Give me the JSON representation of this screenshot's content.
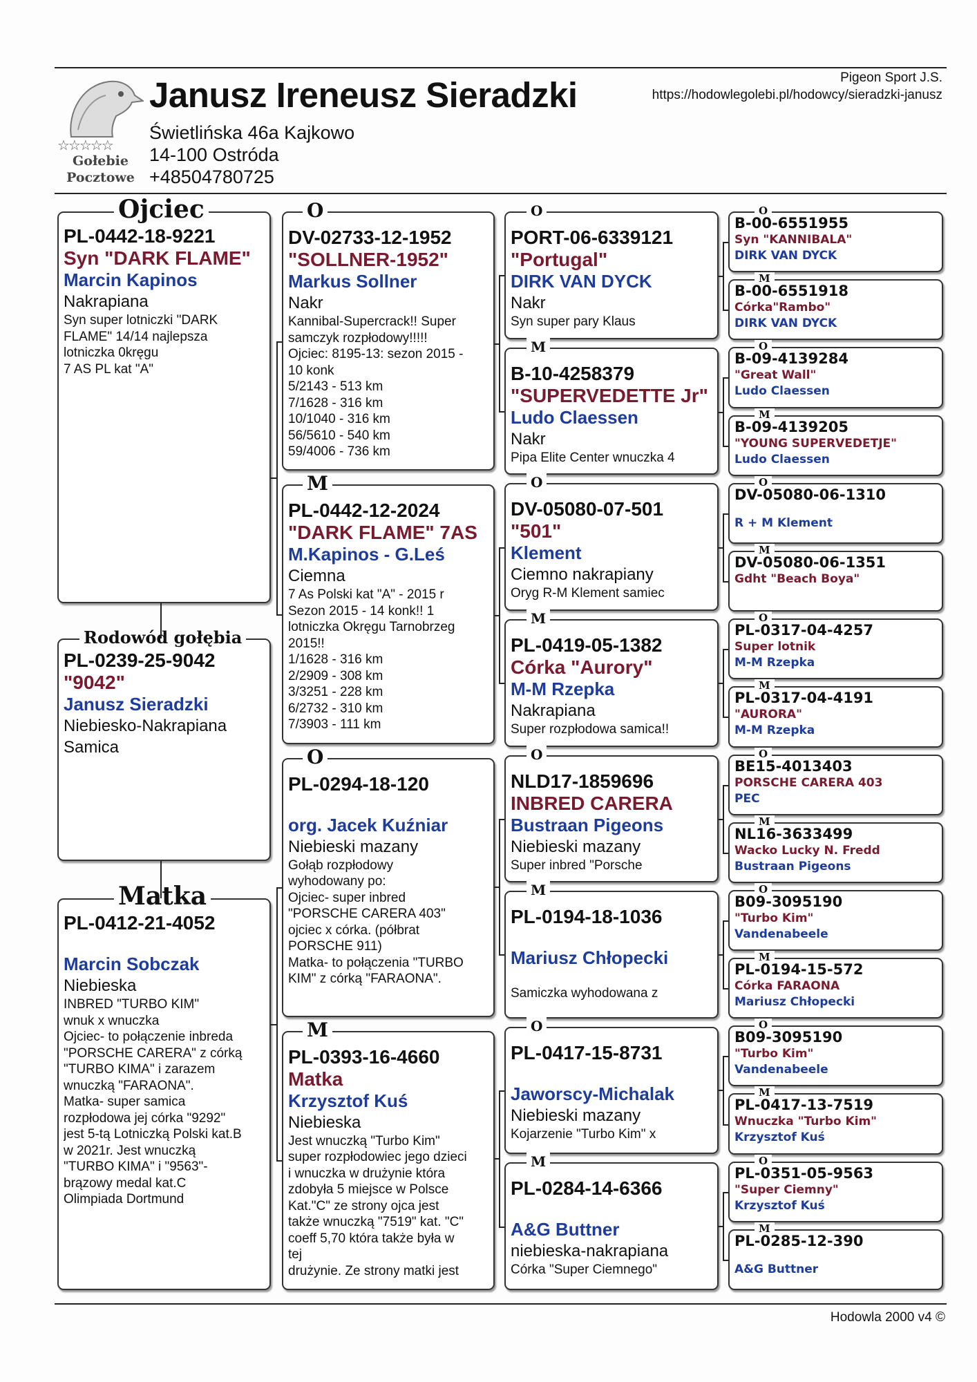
{
  "header": {
    "breeder": "Janusz Ireneusz Sieradzki",
    "address_lines": [
      "Świetlińska 46a Kajkowo",
      "14-100 Ostróda",
      "+48504780725"
    ],
    "club": "Pigeon Sport J.S.",
    "url": "https://hodowlegolebi.pl/hodowcy/sieradzki-janusz",
    "logo": {
      "stars": "☆☆☆☆☆",
      "line1": "Gołebie",
      "line2": "Pocztowe",
      "icon": "pigeon-head-icon"
    }
  },
  "colors": {
    "name": "#7a1a2e",
    "owner": "#1d3c9b"
  },
  "main": [
    {
      "label": "Ojciec",
      "ring": "PL-0442-18-9221",
      "name": "Syn  \"DARK FLAME\"",
      "owner": " Marcin Kapinos",
      "color": "Nakrapiana",
      "notes": [
        "Syn  super lotniczki \"DARK",
        "FLAME\" 14/14 najlepsza",
        "lotniczka 0kręgu",
        "7 AS PL kat \"A\""
      ]
    },
    {
      "label": "Rodowód gołębia",
      "ring": "PL-0239-25-9042",
      "name": "\"9042\"",
      "owner": "Janusz Sieradzki",
      "color": "Niebiesko-Nakrapiana",
      "notes": [],
      "extra": "Samica"
    },
    {
      "label": "Matka",
      "ring": "PL-0412-21-4052",
      "name": "",
      "owner": "Marcin Sobczak",
      "color": "Niebieska",
      "notes": [
        "INBRED \"TURBO KIM\"",
        "wnuk x wnuczka",
        "Ojciec- to połączenie inbreda",
        "\"PORSCHE CARERA\" z córką",
        "\"TURBO KIMA\"  i zarazem",
        "wnuczką \"FARAONA\".",
        "Matka- super samica",
        "rozpłodowa jej córka \"9292\"",
        "jest 5-tą Lotniczką Polski kat.B",
        "w 2021r. Jest wnuczką",
        "\"TURBO KIMA\" i \"9563\"-",
        "brązowy medal kat.C",
        "Olimpiada Dortmund"
      ]
    }
  ],
  "col2": [
    {
      "label": "O",
      "ring": "DV-02733-12-1952",
      "name": "\"SOLLNER-1952\"",
      "owner": "Markus Sollner",
      "color": "Nakr",
      "notes": [
        "Kannibal-Supercrack!! Super",
        "samczyk rozpłodowy!!!!!",
        "Ojciec: 8195-13: sezon 2015 -",
        "10 konk",
        "5/2143 - 513 km",
        "7/1628 - 316 km",
        "10/1040 - 316 km",
        "56/5610 - 540 km",
        "59/4006 - 736 km"
      ]
    },
    {
      "label": "M",
      "ring": "PL-0442-12-2024",
      "name": "\"DARK FLAME\" 7AS",
      "owner": "M.Kapinos - G.Leś",
      "color": "Ciemna",
      "notes": [
        "7 As Polski kat \"A\" - 2015 r",
        "Sezon 2015 - 14 konk!! 1",
        "lotniczka Okręgu Tarnobrzeg",
        "2015!!",
        "1/1628 - 316 km",
        "2/2909 - 308 km",
        "3/3251 - 228 km",
        "6/2732 - 310 km",
        "7/3903 - 111 km"
      ]
    },
    {
      "label": "O",
      "ring": "PL-0294-18-120",
      "name": "",
      "owner": "org. Jacek Kuźniar",
      "color": "Niebieski mazany",
      "notes": [
        "Gołąb rozpłodowy",
        "wyhodowany po:",
        "Ojciec- super inbred",
        "\"PORSCHE CARERA 403\"",
        "ojciec x córka. (półbrat",
        "PORSCHE 911)",
        "Matka- to połączenia \"TURBO",
        "KIM\" z córką \"FARAONA\"."
      ]
    },
    {
      "label": "M",
      "ring": "PL-0393-16-4660",
      "name": "Matka",
      "owner": "Krzysztof Kuś",
      "color": "Niebieska",
      "notes": [
        "Jest wnuczką \"Turbo Kim\"",
        "super rozpłodowiec jego dzieci",
        "i wnuczka w drużynie która",
        "zdobyła 5 miejsce w Polsce",
        "Kat.\"C\" ze strony ojca jest",
        "także wnuczką \"7519\" kat. \"C\"",
        "coeff 5,70 która także była w",
        "tej",
        "drużynie. Ze strony matki jest"
      ]
    }
  ],
  "col3": [
    {
      "label": "O",
      "ring": "PORT-06-6339121",
      "name": "\"Portugal\"",
      "owner": "DIRK VAN DYCK",
      "color": "Nakr",
      "notes": [
        "Syn super pary Klaus"
      ]
    },
    {
      "label": "M",
      "ring": "B-10-4258379",
      "name": "\"SUPERVEDETTE Jr\"",
      "owner": "Ludo Claessen",
      "color": "Nakr",
      "notes": [
        "Pipa Elite Center wnuczka 4"
      ]
    },
    {
      "label": "O",
      "ring": "DV-05080-07-501",
      "name": "\"501\"",
      "owner": "Klement",
      "color": "Ciemno nakrapiany",
      "notes": [
        "Oryg R-M Klement samiec"
      ]
    },
    {
      "label": "M",
      "ring": "PL-0419-05-1382",
      "name": "Córka \"Aurory\"",
      "owner": "M-M Rzepka",
      "color": "Nakrapiana",
      "notes": [
        "Super rozpłodowa samica!!"
      ]
    },
    {
      "label": "O",
      "ring": "NLD17-1859696",
      "name": "INBRED CARERA",
      "owner": "Bustraan Pigeons",
      "color": "Niebieski mazany",
      "notes": [
        "Super inbred \"Porsche"
      ]
    },
    {
      "label": "M",
      "ring": "PL-0194-18-1036",
      "name": "",
      "owner": "Mariusz Chłopecki",
      "color": "",
      "notes": [
        "Samiczka wyhodowana z"
      ]
    },
    {
      "label": "O",
      "ring": "PL-0417-15-8731",
      "name": "",
      "owner": "Jaworscy-Michalak",
      "color": "Niebieski mazany",
      "notes": [
        "Kojarzenie \"Turbo Kim\" x"
      ]
    },
    {
      "label": "M",
      "ring": "PL-0284-14-6366",
      "name": "",
      "owner": "A&G Buttner",
      "color": "niebieska-nakrapiana",
      "notes": [
        "Córka \"Super Ciemnego\""
      ]
    }
  ],
  "col4": [
    {
      "label": "O",
      "ring": "B-00-6551955",
      "name": "Syn \"KANNIBALA\"",
      "owner": "DIRK VAN DYCK"
    },
    {
      "label": "M",
      "ring": "B-00-6551918",
      "name": "Córka\"Rambo\"",
      "owner": "DIRK VAN DYCK"
    },
    {
      "label": "O",
      "ring": "B-09-4139284",
      "name": "\"Great Wall\"",
      "owner": "Ludo Claessen"
    },
    {
      "label": "M",
      "ring": "B-09-4139205",
      "name": "\"YOUNG SUPERVEDETJE\"",
      "owner": "Ludo Claessen"
    },
    {
      "label": "O",
      "ring": "DV-05080-06-1310",
      "name": "",
      "owner": "R + M Klement"
    },
    {
      "label": "M",
      "ring": "DV-05080-06-1351",
      "name": "Gdht \"Beach Boya\"",
      "owner": ""
    },
    {
      "label": "O",
      "ring": "PL-0317-04-4257",
      "name": "Super lotnik",
      "owner": "M-M Rzepka"
    },
    {
      "label": "M",
      "ring": "PL-0317-04-4191",
      "name": "\"AURORA\"",
      "owner": "M-M Rzepka"
    },
    {
      "label": "O",
      "ring": "BE15-4013403",
      "name": "PORSCHE CARERA 403",
      "owner": "PEC"
    },
    {
      "label": "M",
      "ring": "NL16-3633499",
      "name": "Wacko Lucky N. Fredd",
      "owner": "Bustraan Pigeons"
    },
    {
      "label": "O",
      "ring": "B09-3095190",
      "name": "\"Turbo Kim\"",
      "owner": "Vandenabeele"
    },
    {
      "label": "M",
      "ring": "PL-0194-15-572",
      "name": "Córka FARAONA",
      "owner": "Mariusz Chłopecki"
    },
    {
      "label": "O",
      "ring": "B09-3095190",
      "name": "\"Turbo Kim\"",
      "owner": "Vandenabeele"
    },
    {
      "label": "M",
      "ring": "PL-0417-13-7519",
      "name": "Wnuczka \"Turbo Kim\"",
      "owner": "Krzysztof Kuś"
    },
    {
      "label": "O",
      "ring": "PL-0351-05-9563",
      "name": "\"Super Ciemny\"",
      "owner": "Krzysztof Kuś"
    },
    {
      "label": "M",
      "ring": "PL-0285-12-390",
      "name": "",
      "owner": "A&G Buttner"
    }
  ],
  "footer": {
    "text": "Hodowla 2000 v4 ©"
  }
}
